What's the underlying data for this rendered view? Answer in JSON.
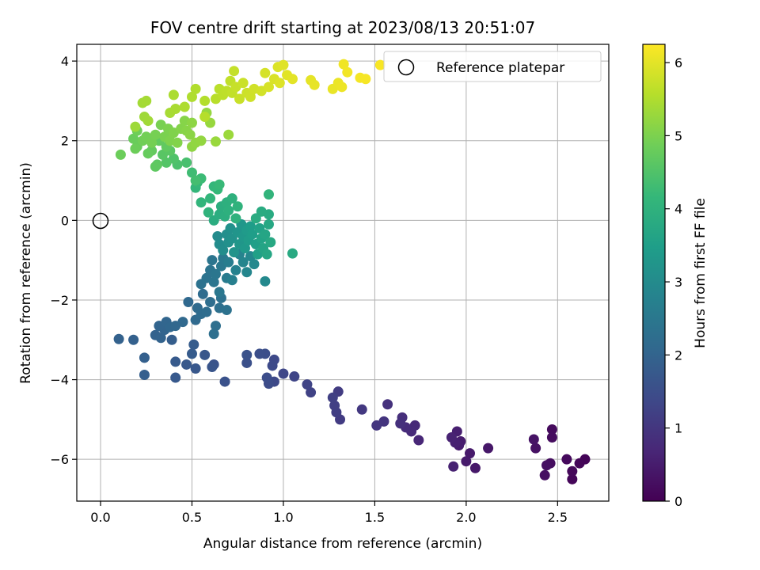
{
  "chart_data": {
    "type": "scatter",
    "title": "FOV centre drift starting at 2023/08/13 20:51:07",
    "xlabel": "Angular distance from reference (arcmin)",
    "ylabel": "Rotation from reference (arcmin)",
    "xlim": [
      -0.13,
      2.78
    ],
    "ylim": [
      -7.05,
      4.42
    ],
    "xticks": [
      0.0,
      0.5,
      1.0,
      1.5,
      2.0,
      2.5
    ],
    "xtick_labels": [
      "0.0",
      "0.5",
      "1.0",
      "1.5",
      "2.0",
      "2.5"
    ],
    "yticks": [
      -6,
      -4,
      -2,
      0,
      2,
      4
    ],
    "ytick_labels": [
      "−6",
      "−4",
      "−2",
      "0",
      "2",
      "4"
    ],
    "grid": true,
    "legend": {
      "position": "top-right",
      "entries": [
        "Reference platepar"
      ]
    },
    "reference_point": {
      "x": 0.0,
      "y": 0.0
    },
    "colorbar": {
      "label": "Hours from first FF file",
      "range": [
        0,
        6.25
      ],
      "ticks": [
        0,
        1,
        2,
        3,
        4,
        5,
        6
      ],
      "tick_labels": [
        "0",
        "1",
        "2",
        "3",
        "4",
        "5",
        "6"
      ],
      "colormap": "viridis"
    },
    "colormap_stops": [
      "#440154",
      "#482777",
      "#3e4989",
      "#31688e",
      "#26828e",
      "#1f9e89",
      "#35b779",
      "#6ece58",
      "#b5de2b",
      "#fde725"
    ],
    "points": [
      {
        "x": 2.65,
        "y": -6.0,
        "h": 0.05
      },
      {
        "x": 2.62,
        "y": -6.1,
        "h": 0.08
      },
      {
        "x": 2.58,
        "y": -6.5,
        "h": 0.1
      },
      {
        "x": 2.58,
        "y": -6.3,
        "h": 0.12
      },
      {
        "x": 2.55,
        "y": -6.0,
        "h": 0.15
      },
      {
        "x": 2.47,
        "y": -5.25,
        "h": 0.18
      },
      {
        "x": 2.47,
        "y": -5.45,
        "h": 0.2
      },
      {
        "x": 2.46,
        "y": -6.1,
        "h": 0.22
      },
      {
        "x": 2.44,
        "y": -6.15,
        "h": 0.25
      },
      {
        "x": 2.43,
        "y": -6.4,
        "h": 0.28
      },
      {
        "x": 2.38,
        "y": -5.72,
        "h": 0.3
      },
      {
        "x": 2.37,
        "y": -5.5,
        "h": 0.33
      },
      {
        "x": 2.12,
        "y": -5.72,
        "h": 0.4
      },
      {
        "x": 2.05,
        "y": -6.22,
        "h": 0.42
      },
      {
        "x": 2.02,
        "y": -5.85,
        "h": 0.45
      },
      {
        "x": 2.0,
        "y": -6.05,
        "h": 0.48
      },
      {
        "x": 1.97,
        "y": -5.55,
        "h": 0.5
      },
      {
        "x": 1.96,
        "y": -5.65,
        "h": 0.52
      },
      {
        "x": 1.95,
        "y": -5.3,
        "h": 0.55
      },
      {
        "x": 1.94,
        "y": -5.58,
        "h": 0.58
      },
      {
        "x": 1.93,
        "y": -6.18,
        "h": 0.6
      },
      {
        "x": 1.92,
        "y": -5.45,
        "h": 0.62
      },
      {
        "x": 1.74,
        "y": -5.52,
        "h": 0.7
      },
      {
        "x": 1.72,
        "y": -5.15,
        "h": 0.75
      },
      {
        "x": 1.7,
        "y": -5.3,
        "h": 0.78
      },
      {
        "x": 1.67,
        "y": -5.2,
        "h": 0.8
      },
      {
        "x": 1.65,
        "y": -4.95,
        "h": 0.85
      },
      {
        "x": 1.64,
        "y": -5.1,
        "h": 0.88
      },
      {
        "x": 1.57,
        "y": -4.62,
        "h": 0.9
      },
      {
        "x": 1.55,
        "y": -5.05,
        "h": 0.95
      },
      {
        "x": 1.51,
        "y": -5.15,
        "h": 1.0
      },
      {
        "x": 1.43,
        "y": -4.75,
        "h": 1.05
      },
      {
        "x": 1.31,
        "y": -5.0,
        "h": 1.1
      },
      {
        "x": 1.3,
        "y": -4.3,
        "h": 1.12
      },
      {
        "x": 1.29,
        "y": -4.82,
        "h": 1.15
      },
      {
        "x": 1.28,
        "y": -4.65,
        "h": 1.18
      },
      {
        "x": 1.27,
        "y": -4.45,
        "h": 1.2
      },
      {
        "x": 1.15,
        "y": -4.32,
        "h": 1.25
      },
      {
        "x": 1.13,
        "y": -4.12,
        "h": 1.28
      },
      {
        "x": 1.06,
        "y": -3.92,
        "h": 1.3
      },
      {
        "x": 1.0,
        "y": -3.85,
        "h": 1.35
      },
      {
        "x": 0.95,
        "y": -4.05,
        "h": 1.38
      },
      {
        "x": 0.95,
        "y": -3.5,
        "h": 1.4
      },
      {
        "x": 0.94,
        "y": -3.65,
        "h": 1.42
      },
      {
        "x": 0.92,
        "y": -4.1,
        "h": 1.45
      },
      {
        "x": 0.91,
        "y": -3.95,
        "h": 1.48
      },
      {
        "x": 0.9,
        "y": -3.35,
        "h": 1.5
      },
      {
        "x": 0.87,
        "y": -3.35,
        "h": 1.52
      },
      {
        "x": 0.8,
        "y": -3.58,
        "h": 1.55
      },
      {
        "x": 0.8,
        "y": -3.38,
        "h": 1.58
      },
      {
        "x": 0.68,
        "y": -4.05,
        "h": 1.6
      },
      {
        "x": 0.62,
        "y": -3.62,
        "h": 1.62
      },
      {
        "x": 0.61,
        "y": -3.68,
        "h": 1.65
      },
      {
        "x": 0.57,
        "y": -3.38,
        "h": 1.68
      },
      {
        "x": 0.52,
        "y": -3.72,
        "h": 1.7
      },
      {
        "x": 0.47,
        "y": -3.62,
        "h": 1.72
      },
      {
        "x": 0.41,
        "y": -3.95,
        "h": 1.75
      },
      {
        "x": 0.41,
        "y": -3.55,
        "h": 1.78
      },
      {
        "x": 0.5,
        "y": -3.35,
        "h": 1.8
      },
      {
        "x": 0.51,
        "y": -3.12,
        "h": 1.82
      },
      {
        "x": 0.39,
        "y": -3.0,
        "h": 1.85
      },
      {
        "x": 0.24,
        "y": -3.88,
        "h": 1.88
      },
      {
        "x": 0.24,
        "y": -3.45,
        "h": 1.9
      },
      {
        "x": 0.18,
        "y": -3.0,
        "h": 1.92
      },
      {
        "x": 0.1,
        "y": -2.98,
        "h": 1.94
      },
      {
        "x": 0.3,
        "y": -2.88,
        "h": 1.96
      },
      {
        "x": 0.33,
        "y": -2.95,
        "h": 1.98
      },
      {
        "x": 0.35,
        "y": -2.75,
        "h": 2.0
      },
      {
        "x": 0.32,
        "y": -2.65,
        "h": 2.02
      },
      {
        "x": 0.36,
        "y": -2.55,
        "h": 2.04
      },
      {
        "x": 0.38,
        "y": -2.68,
        "h": 2.06
      },
      {
        "x": 0.41,
        "y": -2.65,
        "h": 2.08
      },
      {
        "x": 0.45,
        "y": -2.55,
        "h": 2.1
      },
      {
        "x": 0.48,
        "y": -2.05,
        "h": 2.12
      },
      {
        "x": 0.52,
        "y": -2.5,
        "h": 2.14
      },
      {
        "x": 0.53,
        "y": -2.2,
        "h": 2.16
      },
      {
        "x": 0.55,
        "y": -2.35,
        "h": 2.18
      },
      {
        "x": 0.56,
        "y": -1.85,
        "h": 2.2
      },
      {
        "x": 0.58,
        "y": -2.3,
        "h": 2.22
      },
      {
        "x": 0.6,
        "y": -2.05,
        "h": 2.24
      },
      {
        "x": 0.62,
        "y": -2.85,
        "h": 2.26
      },
      {
        "x": 0.63,
        "y": -2.65,
        "h": 2.28
      },
      {
        "x": 0.65,
        "y": -2.2,
        "h": 2.3
      },
      {
        "x": 0.66,
        "y": -1.95,
        "h": 2.32
      },
      {
        "x": 0.69,
        "y": -2.25,
        "h": 2.34
      },
      {
        "x": 0.55,
        "y": -1.6,
        "h": 2.36
      },
      {
        "x": 0.58,
        "y": -1.45,
        "h": 2.38
      },
      {
        "x": 0.6,
        "y": -1.25,
        "h": 2.4
      },
      {
        "x": 0.61,
        "y": -1.0,
        "h": 2.42
      },
      {
        "x": 0.62,
        "y": -1.55,
        "h": 2.44
      },
      {
        "x": 0.63,
        "y": -1.35,
        "h": 2.46
      },
      {
        "x": 0.65,
        "y": -1.8,
        "h": 2.48
      },
      {
        "x": 0.66,
        "y": -1.15,
        "h": 2.5
      },
      {
        "x": 0.67,
        "y": -0.95,
        "h": 2.55
      },
      {
        "x": 0.69,
        "y": -1.45,
        "h": 2.6
      },
      {
        "x": 0.7,
        "y": -1.05,
        "h": 2.65
      },
      {
        "x": 0.72,
        "y": -1.5,
        "h": 2.7
      },
      {
        "x": 0.74,
        "y": -1.25,
        "h": 2.75
      },
      {
        "x": 0.76,
        "y": -0.85,
        "h": 2.8
      },
      {
        "x": 0.78,
        "y": -1.05,
        "h": 2.85
      },
      {
        "x": 0.8,
        "y": -1.3,
        "h": 2.88
      },
      {
        "x": 0.82,
        "y": -0.9,
        "h": 2.9
      },
      {
        "x": 0.84,
        "y": -1.1,
        "h": 2.93
      },
      {
        "x": 0.9,
        "y": -1.53,
        "h": 2.96
      },
      {
        "x": 0.64,
        "y": -0.4,
        "h": 3.0
      },
      {
        "x": 0.65,
        "y": -0.6,
        "h": 3.03
      },
      {
        "x": 0.67,
        "y": -0.75,
        "h": 3.06
      },
      {
        "x": 0.69,
        "y": -0.35,
        "h": 3.09
      },
      {
        "x": 0.7,
        "y": -0.55,
        "h": 3.12
      },
      {
        "x": 0.71,
        "y": -0.2,
        "h": 3.15
      },
      {
        "x": 0.72,
        "y": -0.45,
        "h": 3.18
      },
      {
        "x": 0.73,
        "y": -0.8,
        "h": 3.21
      },
      {
        "x": 0.75,
        "y": -0.3,
        "h": 3.24
      },
      {
        "x": 0.76,
        "y": -0.6,
        "h": 3.27
      },
      {
        "x": 0.77,
        "y": -0.1,
        "h": 3.3
      },
      {
        "x": 0.78,
        "y": -0.4,
        "h": 3.33
      },
      {
        "x": 0.79,
        "y": -0.7,
        "h": 3.36
      },
      {
        "x": 0.8,
        "y": -0.25,
        "h": 3.39
      },
      {
        "x": 0.81,
        "y": -0.5,
        "h": 3.42
      },
      {
        "x": 0.82,
        "y": -0.15,
        "h": 3.45
      },
      {
        "x": 0.83,
        "y": -0.35,
        "h": 3.48
      },
      {
        "x": 0.85,
        "y": -0.6,
        "h": 3.51
      },
      {
        "x": 0.86,
        "y": -0.85,
        "h": 3.54
      },
      {
        "x": 0.87,
        "y": -0.2,
        "h": 3.57
      },
      {
        "x": 0.88,
        "y": -0.45,
        "h": 3.6
      },
      {
        "x": 0.89,
        "y": -0.7,
        "h": 3.63
      },
      {
        "x": 0.9,
        "y": -0.35,
        "h": 3.66
      },
      {
        "x": 0.91,
        "y": -0.85,
        "h": 3.69
      },
      {
        "x": 0.92,
        "y": -0.1,
        "h": 3.72
      },
      {
        "x": 0.93,
        "y": -0.55,
        "h": 3.75
      },
      {
        "x": 1.05,
        "y": -0.83,
        "h": 3.78
      },
      {
        "x": 0.92,
        "y": 0.15,
        "h": 3.8
      },
      {
        "x": 0.88,
        "y": 0.22,
        "h": 3.82
      },
      {
        "x": 0.85,
        "y": 0.05,
        "h": 3.84
      },
      {
        "x": 0.62,
        "y": -0.0,
        "h": 3.86
      },
      {
        "x": 0.65,
        "y": 0.15,
        "h": 3.88
      },
      {
        "x": 0.66,
        "y": 0.35,
        "h": 3.9
      },
      {
        "x": 0.68,
        "y": 0.1,
        "h": 3.92
      },
      {
        "x": 0.69,
        "y": 0.45,
        "h": 3.94
      },
      {
        "x": 0.7,
        "y": 0.25,
        "h": 3.96
      },
      {
        "x": 0.72,
        "y": 0.55,
        "h": 3.98
      },
      {
        "x": 0.74,
        "y": 0.05,
        "h": 4.0
      },
      {
        "x": 0.75,
        "y": 0.35,
        "h": 4.02
      },
      {
        "x": 0.59,
        "y": 0.2,
        "h": 4.04
      },
      {
        "x": 0.92,
        "y": 0.65,
        "h": 4.06
      },
      {
        "x": 0.55,
        "y": 0.45,
        "h": 4.08
      },
      {
        "x": 0.6,
        "y": 0.55,
        "h": 4.1
      },
      {
        "x": 0.52,
        "y": 0.82,
        "h": 4.12
      },
      {
        "x": 0.62,
        "y": 0.85,
        "h": 4.14
      },
      {
        "x": 0.64,
        "y": 0.78,
        "h": 4.16
      },
      {
        "x": 0.53,
        "y": 0.95,
        "h": 4.18
      },
      {
        "x": 0.65,
        "y": 0.9,
        "h": 4.2
      },
      {
        "x": 0.55,
        "y": 1.05,
        "h": 4.25
      },
      {
        "x": 0.5,
        "y": 1.2,
        "h": 4.3
      },
      {
        "x": 0.52,
        "y": 1.0,
        "h": 4.35
      },
      {
        "x": 0.47,
        "y": 1.45,
        "h": 4.4
      },
      {
        "x": 0.42,
        "y": 1.4,
        "h": 4.45
      },
      {
        "x": 0.4,
        "y": 1.55,
        "h": 4.5
      },
      {
        "x": 0.36,
        "y": 1.45,
        "h": 4.55
      },
      {
        "x": 0.34,
        "y": 1.65,
        "h": 4.6
      },
      {
        "x": 0.38,
        "y": 1.75,
        "h": 4.62
      },
      {
        "x": 0.31,
        "y": 1.4,
        "h": 4.65
      },
      {
        "x": 0.3,
        "y": 1.35,
        "h": 4.68
      },
      {
        "x": 0.36,
        "y": 1.85,
        "h": 4.7
      },
      {
        "x": 0.32,
        "y": 2.0,
        "h": 4.72
      },
      {
        "x": 0.28,
        "y": 1.75,
        "h": 4.74
      },
      {
        "x": 0.26,
        "y": 1.68,
        "h": 4.76
      },
      {
        "x": 0.2,
        "y": 1.85,
        "h": 4.78
      },
      {
        "x": 0.18,
        "y": 2.05,
        "h": 4.8
      },
      {
        "x": 0.11,
        "y": 1.65,
        "h": 4.82
      },
      {
        "x": 0.19,
        "y": 1.8,
        "h": 4.84
      },
      {
        "x": 0.2,
        "y": 2.25,
        "h": 4.86
      },
      {
        "x": 0.23,
        "y": 2.0,
        "h": 4.88
      },
      {
        "x": 0.25,
        "y": 2.1,
        "h": 4.9
      },
      {
        "x": 0.28,
        "y": 1.95,
        "h": 4.92
      },
      {
        "x": 0.3,
        "y": 2.15,
        "h": 4.94
      },
      {
        "x": 0.33,
        "y": 2.4,
        "h": 4.96
      },
      {
        "x": 0.35,
        "y": 2.1,
        "h": 4.98
      },
      {
        "x": 0.37,
        "y": 2.3,
        "h": 5.0
      },
      {
        "x": 0.38,
        "y": 2.0,
        "h": 5.02
      },
      {
        "x": 0.4,
        "y": 2.2,
        "h": 5.04
      },
      {
        "x": 0.42,
        "y": 1.95,
        "h": 5.06
      },
      {
        "x": 0.44,
        "y": 2.3,
        "h": 5.08
      },
      {
        "x": 0.46,
        "y": 2.5,
        "h": 5.1
      },
      {
        "x": 0.47,
        "y": 2.25,
        "h": 5.12
      },
      {
        "x": 0.49,
        "y": 2.15,
        "h": 5.14
      },
      {
        "x": 0.5,
        "y": 2.45,
        "h": 5.16
      },
      {
        "x": 0.5,
        "y": 1.85,
        "h": 5.18
      },
      {
        "x": 0.52,
        "y": 1.95,
        "h": 5.2
      },
      {
        "x": 0.55,
        "y": 2.0,
        "h": 5.22
      },
      {
        "x": 0.58,
        "y": 2.7,
        "h": 5.24
      },
      {
        "x": 0.6,
        "y": 2.45,
        "h": 5.26
      },
      {
        "x": 0.63,
        "y": 1.98,
        "h": 5.28
      },
      {
        "x": 0.7,
        "y": 2.15,
        "h": 5.3
      },
      {
        "x": 0.19,
        "y": 2.35,
        "h": 5.32
      },
      {
        "x": 0.24,
        "y": 2.6,
        "h": 5.34
      },
      {
        "x": 0.26,
        "y": 2.5,
        "h": 5.36
      },
      {
        "x": 0.23,
        "y": 2.95,
        "h": 5.38
      },
      {
        "x": 0.25,
        "y": 3.0,
        "h": 5.4
      },
      {
        "x": 0.38,
        "y": 2.7,
        "h": 5.42
      },
      {
        "x": 0.41,
        "y": 2.8,
        "h": 5.44
      },
      {
        "x": 0.4,
        "y": 3.15,
        "h": 5.46
      },
      {
        "x": 0.46,
        "y": 2.85,
        "h": 5.48
      },
      {
        "x": 0.5,
        "y": 3.1,
        "h": 5.5
      },
      {
        "x": 0.52,
        "y": 3.3,
        "h": 5.52
      },
      {
        "x": 0.57,
        "y": 3.0,
        "h": 5.54
      },
      {
        "x": 0.57,
        "y": 2.6,
        "h": 5.56
      },
      {
        "x": 0.63,
        "y": 3.05,
        "h": 5.58
      },
      {
        "x": 0.65,
        "y": 3.3,
        "h": 5.6
      },
      {
        "x": 0.67,
        "y": 3.15,
        "h": 5.62
      },
      {
        "x": 0.69,
        "y": 3.25,
        "h": 5.64
      },
      {
        "x": 0.71,
        "y": 3.5,
        "h": 5.66
      },
      {
        "x": 0.72,
        "y": 3.2,
        "h": 5.68
      },
      {
        "x": 0.73,
        "y": 3.75,
        "h": 5.7
      },
      {
        "x": 0.74,
        "y": 3.35,
        "h": 5.72
      },
      {
        "x": 0.76,
        "y": 3.05,
        "h": 5.74
      },
      {
        "x": 0.78,
        "y": 3.45,
        "h": 5.76
      },
      {
        "x": 0.8,
        "y": 3.2,
        "h": 5.78
      },
      {
        "x": 0.82,
        "y": 3.1,
        "h": 5.8
      },
      {
        "x": 0.84,
        "y": 3.3,
        "h": 5.82
      },
      {
        "x": 0.88,
        "y": 3.25,
        "h": 5.84
      },
      {
        "x": 0.9,
        "y": 3.7,
        "h": 5.86
      },
      {
        "x": 0.92,
        "y": 3.35,
        "h": 5.88
      },
      {
        "x": 0.95,
        "y": 3.55,
        "h": 5.9
      },
      {
        "x": 0.97,
        "y": 3.85,
        "h": 5.92
      },
      {
        "x": 0.98,
        "y": 3.45,
        "h": 5.94
      },
      {
        "x": 1.0,
        "y": 3.9,
        "h": 5.96
      },
      {
        "x": 1.02,
        "y": 3.65,
        "h": 5.98
      },
      {
        "x": 1.05,
        "y": 3.55,
        "h": 6.0
      },
      {
        "x": 1.15,
        "y": 3.52,
        "h": 6.02
      },
      {
        "x": 1.17,
        "y": 3.4,
        "h": 6.04
      },
      {
        "x": 1.27,
        "y": 3.3,
        "h": 6.06
      },
      {
        "x": 1.3,
        "y": 3.45,
        "h": 6.08
      },
      {
        "x": 1.32,
        "y": 3.35,
        "h": 6.1
      },
      {
        "x": 1.33,
        "y": 3.92,
        "h": 6.12
      },
      {
        "x": 1.35,
        "y": 3.72,
        "h": 6.14
      },
      {
        "x": 1.42,
        "y": 3.58,
        "h": 6.16
      },
      {
        "x": 1.45,
        "y": 3.55,
        "h": 6.18
      },
      {
        "x": 1.53,
        "y": 3.9,
        "h": 6.2
      }
    ]
  }
}
